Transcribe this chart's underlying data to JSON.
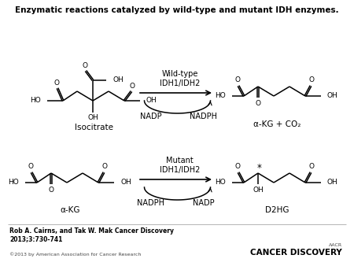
{
  "title": "Enzymatic reactions catalyzed by wild-type and mutant IDH enzymes.",
  "title_fontsize": 7.5,
  "bg_color": "#ffffff",
  "top_reaction": {
    "enzyme_label": "Wild-type\nIDH1/IDH2",
    "substrate_label": "Isocitrate",
    "product_label": "α-KG + CO₂",
    "left_cofactor": "NADP",
    "right_cofactor": "NADPH"
  },
  "bottom_reaction": {
    "enzyme_label": "Mutant\nIDH1/IDH2",
    "substrate_label": "α-KG",
    "product_label": "D2HG",
    "left_cofactor": "NADPH",
    "right_cofactor": "NADP"
  },
  "footer_author": "Rob A. Cairns, and Tak W. Mak Cancer Discovery\n2013;3:730-741",
  "footer_copyright": "©2013 by American Association for Cancer Research",
  "footer_journal": "CANCER DISCOVERY",
  "footer_journal_prefix": "AACR"
}
